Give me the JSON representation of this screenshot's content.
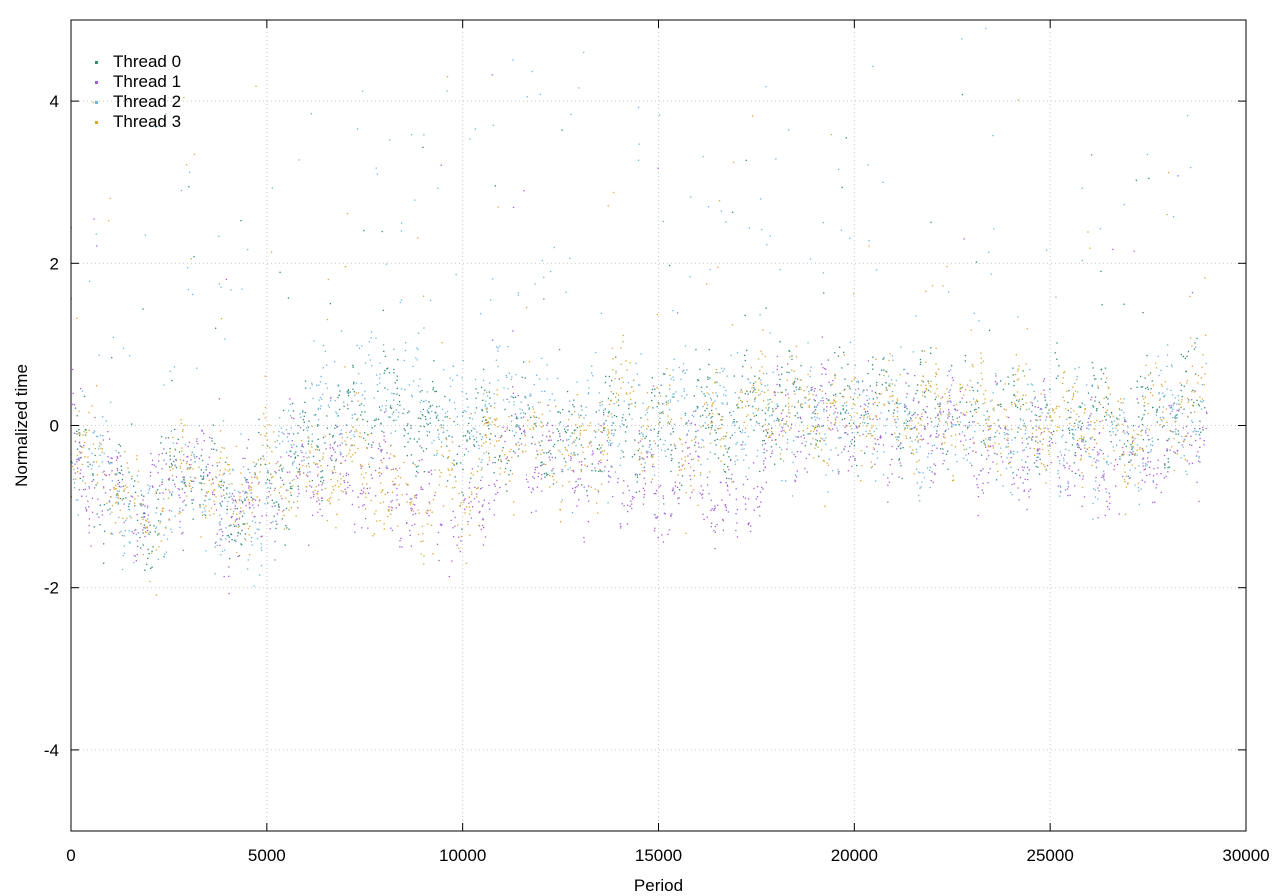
{
  "chart_data": {
    "type": "scatter",
    "title": "",
    "xlabel": "Period",
    "ylabel": "Normalized time",
    "xlim": [
      0,
      30000
    ],
    "ylim": [
      -5,
      5
    ],
    "xticks": [
      0,
      5000,
      10000,
      15000,
      20000,
      25000,
      30000
    ],
    "xtick_labels": [
      "0",
      "5000",
      "10000",
      "15000",
      "20000",
      "25000",
      "30000"
    ],
    "yticks": [
      -4,
      -2,
      0,
      2,
      4
    ],
    "ytick_labels": [
      "-4",
      "-2",
      "0",
      "2",
      "4"
    ],
    "grid": true,
    "legend_position": "top-left",
    "data_x_range": [
      0,
      29000
    ],
    "series": [
      {
        "name": "Thread 0",
        "color": "#2e8b74",
        "trend": [
          [
            0,
            -0.3
          ],
          [
            1000,
            -0.8
          ],
          [
            2000,
            -1.1
          ],
          [
            3000,
            -0.5
          ],
          [
            4000,
            -0.9
          ],
          [
            5000,
            -0.8
          ],
          [
            6000,
            -0.4
          ],
          [
            7000,
            0.1
          ],
          [
            8000,
            0.2
          ],
          [
            9000,
            0.0
          ],
          [
            10000,
            -0.2
          ],
          [
            11000,
            -0.05
          ],
          [
            12000,
            -0.1
          ],
          [
            13000,
            -0.3
          ],
          [
            14000,
            0.0
          ],
          [
            15000,
            -0.1
          ],
          [
            16000,
            0.05
          ],
          [
            17000,
            0.1
          ],
          [
            18000,
            0.2
          ],
          [
            19000,
            0.25
          ],
          [
            20000,
            0.3
          ],
          [
            21000,
            0.2
          ],
          [
            22000,
            0.2
          ],
          [
            23000,
            0.1
          ],
          [
            24000,
            0.15
          ],
          [
            25000,
            0.1
          ],
          [
            26000,
            0.2
          ],
          [
            27000,
            0.0
          ],
          [
            28000,
            0.15
          ],
          [
            29000,
            0.2
          ]
        ]
      },
      {
        "name": "Thread 1",
        "color": "#a55fd6",
        "trend": [
          [
            0,
            -0.4
          ],
          [
            1000,
            -0.9
          ],
          [
            2000,
            -1.0
          ],
          [
            3000,
            -0.4
          ],
          [
            4000,
            -1.2
          ],
          [
            5000,
            -0.9
          ],
          [
            6000,
            -0.5
          ],
          [
            7000,
            -0.6
          ],
          [
            8000,
            -0.7
          ],
          [
            9000,
            -1.1
          ],
          [
            10000,
            -1.3
          ],
          [
            11000,
            -0.2
          ],
          [
            12000,
            -0.3
          ],
          [
            13000,
            -0.4
          ],
          [
            14000,
            -0.7
          ],
          [
            15000,
            -0.9
          ],
          [
            16000,
            -0.5
          ],
          [
            17000,
            -1.1
          ],
          [
            18000,
            -0.1
          ],
          [
            19000,
            0.0
          ],
          [
            20000,
            -0.1
          ],
          [
            21000,
            -0.2
          ],
          [
            22000,
            0.1
          ],
          [
            23000,
            -0.2
          ],
          [
            24000,
            -0.3
          ],
          [
            25000,
            -0.3
          ],
          [
            26000,
            -0.6
          ],
          [
            27000,
            -0.4
          ],
          [
            28000,
            -0.3
          ],
          [
            29000,
            0.1
          ]
        ]
      },
      {
        "name": "Thread 2",
        "color": "#6bb6d9",
        "trend": [
          [
            0,
            -0.2
          ],
          [
            1000,
            -0.7
          ],
          [
            2000,
            -1.4
          ],
          [
            3000,
            -0.6
          ],
          [
            4000,
            -1.3
          ],
          [
            5000,
            -1.0
          ],
          [
            6000,
            0.2
          ],
          [
            7000,
            0.2
          ],
          [
            8000,
            0.5
          ],
          [
            9000,
            0.3
          ],
          [
            10000,
            0.0
          ],
          [
            11000,
            0.4
          ],
          [
            12000,
            0.2
          ],
          [
            13000,
            0.0
          ],
          [
            14000,
            0.1
          ],
          [
            15000,
            0.0
          ],
          [
            16000,
            0.3
          ],
          [
            17000,
            0.1
          ],
          [
            18000,
            0.1
          ],
          [
            19000,
            0.0
          ],
          [
            20000,
            0.0
          ],
          [
            21000,
            0.2
          ],
          [
            22000,
            -0.2
          ],
          [
            23000,
            0.1
          ],
          [
            24000,
            0.0
          ],
          [
            25000,
            -0.2
          ],
          [
            26000,
            -0.3
          ],
          [
            27000,
            -0.4
          ],
          [
            28000,
            0.2
          ],
          [
            29000,
            0.1
          ]
        ]
      },
      {
        "name": "Thread 3",
        "color": "#dba82f",
        "trend": [
          [
            0,
            -0.3
          ],
          [
            1000,
            -0.6
          ],
          [
            2000,
            -1.3
          ],
          [
            3000,
            -0.5
          ],
          [
            4000,
            -1.0
          ],
          [
            5000,
            -0.5
          ],
          [
            6000,
            -0.7
          ],
          [
            7000,
            -0.4
          ],
          [
            8000,
            -0.8
          ],
          [
            9000,
            -0.9
          ],
          [
            10000,
            -0.9
          ],
          [
            11000,
            -0.1
          ],
          [
            12000,
            -0.3
          ],
          [
            13000,
            -0.4
          ],
          [
            14000,
            0.4
          ],
          [
            15000,
            0.0
          ],
          [
            16000,
            -0.4
          ],
          [
            17000,
            0.2
          ],
          [
            18000,
            0.3
          ],
          [
            19000,
            0.1
          ],
          [
            20000,
            0.3
          ],
          [
            21000,
            0.1
          ],
          [
            22000,
            0.2
          ],
          [
            23000,
            0.2
          ],
          [
            24000,
            0.0
          ],
          [
            25000,
            0.1
          ],
          [
            26000,
            0.1
          ],
          [
            27000,
            -0.2
          ],
          [
            28000,
            0.3
          ],
          [
            29000,
            0.2
          ]
        ]
      }
    ]
  }
}
